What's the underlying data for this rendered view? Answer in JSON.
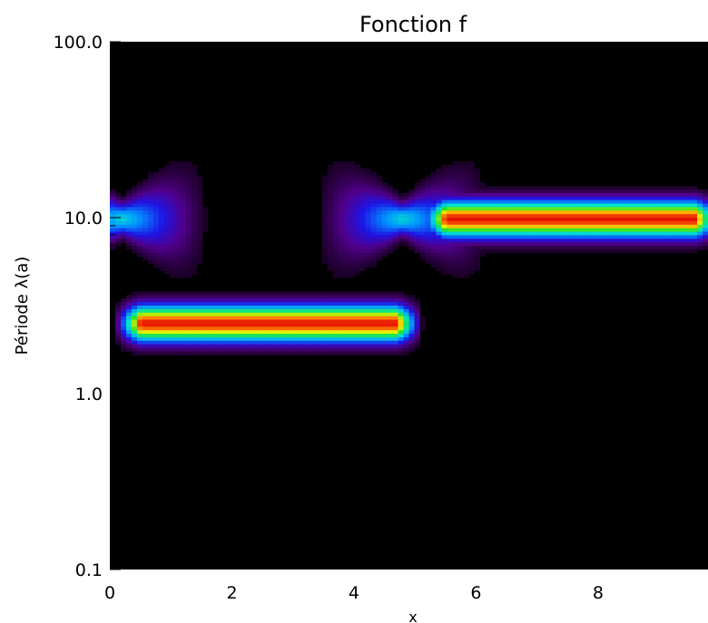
{
  "chart_data": {
    "type": "heatmap",
    "title": "Fonction f",
    "xlabel": "x",
    "ylabel": "Période λ(a)",
    "xlim": [
      0,
      9.8
    ],
    "ylim": [
      0.1,
      100
    ],
    "y_scale": "log",
    "x_ticks": [
      0,
      2,
      4,
      6,
      8
    ],
    "x_tick_labels": [
      "0",
      "2",
      "4",
      "6",
      "8"
    ],
    "y_ticks": [
      0.1,
      1,
      10,
      100
    ],
    "y_tick_labels": [
      "0.1",
      "1.0",
      "10.0",
      "100.0"
    ],
    "colormap": "rainbow (black-purple-blue-cyan-green-yellow-red)",
    "background": "#000000",
    "ridges": [
      {
        "x_start": 0.3,
        "x_end": 4.9,
        "period": 2.5,
        "peak": 1.0
      },
      {
        "x_start": 5.3,
        "x_end": 9.8,
        "period": 9.8,
        "peak": 1.0
      }
    ],
    "fans": [
      {
        "x": 0.2,
        "period": 9.8,
        "extent": 1.5
      },
      {
        "x": 4.8,
        "period": 9.8,
        "extent": 1.5
      }
    ],
    "grid": false,
    "legend": "none"
  }
}
